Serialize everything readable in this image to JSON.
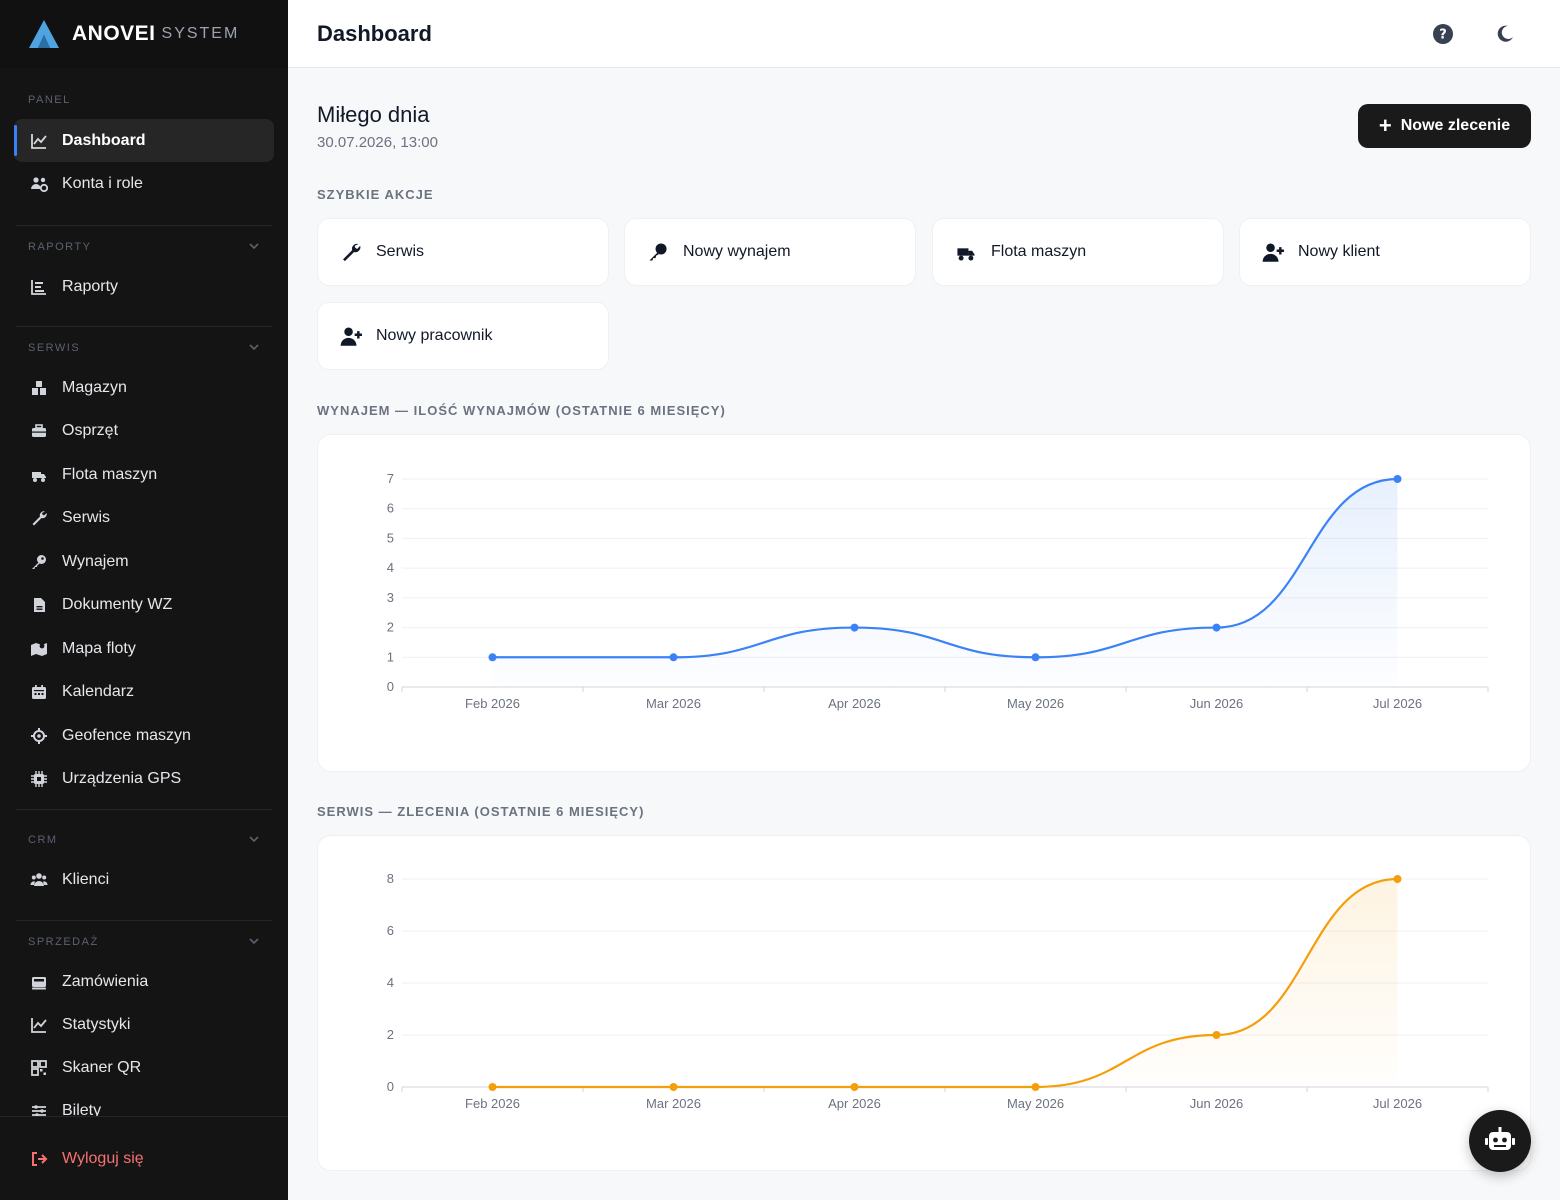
{
  "brand": {
    "name": "ANOVEI",
    "suffix": "SYSTEM"
  },
  "sidebar": {
    "sections": [
      {
        "title": "PANEL",
        "items": [
          {
            "label": "Dashboard",
            "icon": "chart-line-icon",
            "active": true
          },
          {
            "label": "Konta i role",
            "icon": "users-cog-icon"
          }
        ]
      },
      {
        "title": "RAPORTY",
        "items": [
          {
            "label": "Raporty",
            "icon": "list-icon"
          }
        ]
      },
      {
        "title": "SERWIS",
        "items": [
          {
            "label": "Magazyn",
            "icon": "boxes-icon"
          },
          {
            "label": "Osprzęt",
            "icon": "toolbox-icon"
          },
          {
            "label": "Flota maszyn",
            "icon": "truck-icon"
          },
          {
            "label": "Serwis",
            "icon": "wrench-icon"
          },
          {
            "label": "Wynajem",
            "icon": "key-icon"
          },
          {
            "label": "Dokumenty WZ",
            "icon": "file-icon"
          },
          {
            "label": "Mapa floty",
            "icon": "map-icon"
          },
          {
            "label": "Kalendarz",
            "icon": "calendar-icon"
          },
          {
            "label": "Geofence maszyn",
            "icon": "crosshair-icon"
          },
          {
            "label": "Urządzenia GPS",
            "icon": "chip-icon"
          }
        ]
      },
      {
        "title": "CRM",
        "items": [
          {
            "label": "Klienci",
            "icon": "users-icon"
          }
        ]
      },
      {
        "title": "SPRZEDAŻ",
        "items": [
          {
            "label": "Zamówienia",
            "icon": "cash-register-icon"
          },
          {
            "label": "Statystyki",
            "icon": "chart-line-icon"
          },
          {
            "label": "Skaner QR",
            "icon": "qr-icon"
          },
          {
            "label": "Bilety",
            "icon": "ticket-icon"
          }
        ]
      }
    ],
    "logout": "Wyloguj się"
  },
  "topbar": {
    "title": "Dashboard"
  },
  "main": {
    "greeting": "Miłego dnia",
    "datetime": "30.07.2026, 13:00",
    "new_button": "Nowe zlecenie",
    "quick_title": "SZYBKIE AKCJE",
    "quick_actions": [
      {
        "label": "Serwis",
        "icon": "wrench-icon"
      },
      {
        "label": "Nowy wynajem",
        "icon": "key-icon"
      },
      {
        "label": "Flota maszyn",
        "icon": "truck-icon"
      },
      {
        "label": "Nowy klient",
        "icon": "user-plus-icon"
      },
      {
        "label": "Nowy pracownik",
        "icon": "user-plus-icon"
      }
    ],
    "chart1_title": "WYNAJEM — ILOŚĆ WYNAJMÓW (OSTATNIE 6 MIESIĘCY)",
    "chart2_title": "SERWIS — ZLECENIA (OSTATNIE 6 MIESIĘCY)"
  },
  "chart_data": [
    {
      "type": "area",
      "title": "WYNAJEM — ILOŚĆ WYNAJMÓW (OSTATNIE 6 MIESIĘCY)",
      "categories": [
        "Feb 2026",
        "Mar 2026",
        "Apr 2026",
        "May 2026",
        "Jun 2026",
        "Jul 2026"
      ],
      "values": [
        1,
        1,
        2,
        1,
        2,
        7
      ],
      "ylim": [
        0,
        7
      ],
      "yticks": [
        0,
        1,
        2,
        3,
        4,
        5,
        6,
        7
      ],
      "color": "#3b82f6",
      "grid": true
    },
    {
      "type": "area",
      "title": "SERWIS — ZLECENIA (OSTATNIE 6 MIESIĘCY)",
      "categories": [
        "Feb 2026",
        "Mar 2026",
        "Apr 2026",
        "May 2026",
        "Jun 2026",
        "Jul 2026"
      ],
      "values": [
        0,
        0,
        0,
        0,
        2,
        8
      ],
      "ylim": [
        0,
        8
      ],
      "yticks": [
        0,
        2,
        4,
        6,
        8
      ],
      "color": "#f59e0b",
      "grid": true
    }
  ]
}
